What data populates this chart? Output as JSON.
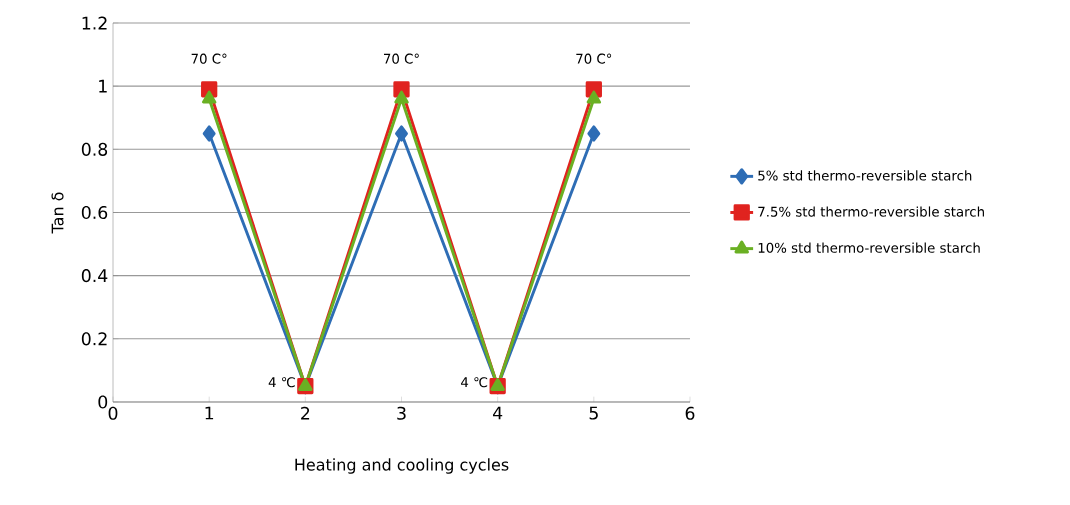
{
  "chart_data": {
    "type": "line",
    "xlabel": "Heating and cooling cycles",
    "ylabel": "Tan δ",
    "x": [
      1,
      2,
      3,
      4,
      5
    ],
    "series": [
      {
        "name": "5% std thermo-reversible starch",
        "color": "#2e6db5",
        "marker": "diamond",
        "values": [
          0.85,
          0.05,
          0.85,
          0.05,
          0.85
        ]
      },
      {
        "name": "7.5% std thermo-reversible starch",
        "color": "#e0231f",
        "marker": "square",
        "values": [
          0.99,
          0.05,
          0.99,
          0.05,
          0.99
        ]
      },
      {
        "name": "10% std thermo-reversible starch",
        "color": "#6ab023",
        "marker": "triangle",
        "values": [
          0.96,
          0.05,
          0.96,
          0.05,
          0.96
        ]
      }
    ],
    "xlim": [
      0,
      6
    ],
    "xticks": [
      0,
      1,
      2,
      3,
      4,
      5,
      6
    ],
    "ylim": [
      0,
      1.2
    ],
    "yticks": [
      0,
      0.2,
      0.4,
      0.6,
      0.8,
      1,
      1.2
    ],
    "grid": "y",
    "legend": "right",
    "line_style": "solid",
    "annotations": [
      {
        "text": "70 C°",
        "x": 1,
        "y": 0.99
      },
      {
        "text": "70 C°",
        "x": 3,
        "y": 0.99
      },
      {
        "text": "70 C°",
        "x": 5,
        "y": 0.99
      },
      {
        "text": "4 ℃",
        "x": 2,
        "y": 0.05
      },
      {
        "text": "4 ℃",
        "x": 4,
        "y": 0.05
      }
    ]
  }
}
